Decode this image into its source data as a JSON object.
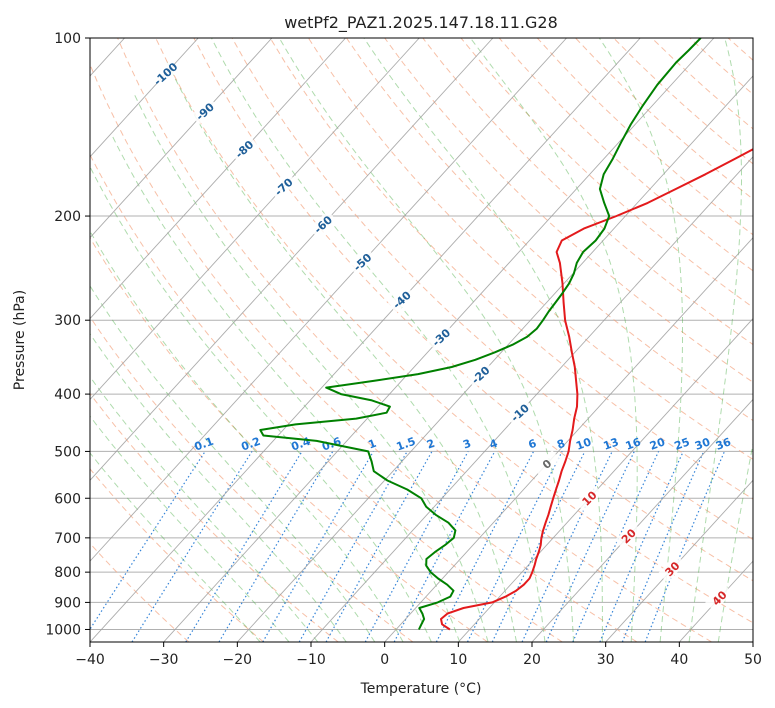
{
  "chart_data": {
    "type": "line",
    "title": "wetPf2_PAZ1.2025.147.18.11.G28",
    "xlabel": "Temperature (°C)",
    "ylabel": "Pressure (hPa)",
    "xlim": [
      -40,
      50
    ],
    "ylim": [
      1050,
      100
    ],
    "y_scale": "log",
    "grid": true,
    "x_ticks": [
      "−40",
      "−30",
      "−20",
      "−10",
      "0",
      "10",
      "20",
      "30",
      "40",
      "50"
    ],
    "x_tick_values": [
      -40,
      -30,
      -20,
      -10,
      0,
      10,
      20,
      30,
      40,
      50
    ],
    "y_ticks": [
      "100",
      "200",
      "300",
      "400",
      "500",
      "600",
      "700",
      "800",
      "900",
      "1000"
    ],
    "y_tick_values": [
      100,
      200,
      300,
      400,
      500,
      600,
      700,
      800,
      900,
      1000
    ],
    "colors": {
      "temperature": "#e31a1c",
      "dewpoint": "#008000",
      "isotherm": "#9e9e9e",
      "dry_adiabat": "#f4a582",
      "moist_adiabat": "#4daf4a",
      "mixing_ratio": "#1f77d4",
      "dry_adiabat_label": "#d62728",
      "moist_label": "#666666",
      "isotherm_label": "#1f5f99"
    },
    "isotherm_labels": [
      "-100",
      "-90",
      "-80",
      "-70",
      "-60",
      "-50",
      "-40",
      "-30",
      "-20",
      "-10"
    ],
    "isotherm_label_values": [
      -100,
      -90,
      -80,
      -70,
      -60,
      -50,
      -40,
      -30,
      -20,
      -10
    ],
    "dry_adiabat_labels": [
      "10",
      "20",
      "30",
      "40"
    ],
    "dry_adiabat_label_values": [
      10,
      20,
      30,
      40
    ],
    "moist_adiabat_label": "0",
    "mixing_ratio_labels": [
      "0.1",
      "0.2",
      "0.4",
      "0.6",
      "1",
      "1.5",
      "2",
      "3",
      "4",
      "6",
      "8",
      "10",
      "13",
      "16",
      "20",
      "25",
      "30",
      "36"
    ],
    "mixing_ratio_values": [
      0.1,
      0.2,
      0.4,
      0.6,
      1,
      1.5,
      2,
      3,
      4,
      6,
      8,
      10,
      13,
      16,
      20,
      25,
      30,
      36
    ],
    "series": [
      {
        "name": "temperature",
        "points": [
          [
            1000,
            7.3
          ],
          [
            980,
            5.6
          ],
          [
            960,
            4.8
          ],
          [
            940,
            5.0
          ],
          [
            920,
            6.5
          ],
          [
            900,
            9.7
          ],
          [
            880,
            10.8
          ],
          [
            860,
            11.5
          ],
          [
            840,
            11.8
          ],
          [
            820,
            11.8
          ],
          [
            800,
            11.4
          ],
          [
            780,
            10.9
          ],
          [
            760,
            10.3
          ],
          [
            740,
            9.8
          ],
          [
            720,
            9.2
          ],
          [
            700,
            8.4
          ],
          [
            680,
            7.7
          ],
          [
            660,
            7.1
          ],
          [
            640,
            6.5
          ],
          [
            620,
            5.8
          ],
          [
            600,
            5.1
          ],
          [
            580,
            4.4
          ],
          [
            560,
            3.7
          ],
          [
            540,
            2.9
          ],
          [
            520,
            2.2
          ],
          [
            500,
            1.4
          ],
          [
            480,
            0.3
          ],
          [
            460,
            -0.7
          ],
          [
            440,
            -1.9
          ],
          [
            420,
            -3.0
          ],
          [
            400,
            -4.5
          ],
          [
            380,
            -6.3
          ],
          [
            360,
            -8.2
          ],
          [
            340,
            -10.4
          ],
          [
            320,
            -12.7
          ],
          [
            300,
            -15.3
          ],
          [
            280,
            -17.7
          ],
          [
            260,
            -20.2
          ],
          [
            240,
            -23.1
          ],
          [
            230,
            -24.9
          ],
          [
            220,
            -25.6
          ],
          [
            210,
            -24.1
          ],
          [
            200,
            -21.2
          ],
          [
            190,
            -18.6
          ],
          [
            180,
            -16.5
          ],
          [
            170,
            -14.3
          ],
          [
            160,
            -12.2
          ],
          [
            150,
            -10.0
          ],
          [
            140,
            -7.9
          ],
          [
            130,
            -5.8
          ],
          [
            120,
            -3.9
          ],
          [
            115,
            -2.8
          ],
          [
            110,
            -1.5
          ],
          [
            105,
            -0.1
          ],
          [
            100,
            1.3
          ]
        ]
      },
      {
        "name": "dewpoint",
        "points": [
          [
            1000,
            3.1
          ],
          [
            980,
            2.8
          ],
          [
            960,
            2.5
          ],
          [
            940,
            1.6
          ],
          [
            920,
            0.5
          ],
          [
            900,
            2.3
          ],
          [
            880,
            3.3
          ],
          [
            860,
            3.0
          ],
          [
            840,
            1.4
          ],
          [
            820,
            -0.6
          ],
          [
            800,
            -2.4
          ],
          [
            780,
            -3.8
          ],
          [
            760,
            -4.6
          ],
          [
            740,
            -4.3
          ],
          [
            720,
            -3.8
          ],
          [
            700,
            -3.5
          ],
          [
            680,
            -4.2
          ],
          [
            660,
            -6.1
          ],
          [
            640,
            -8.8
          ],
          [
            620,
            -11.1
          ],
          [
            600,
            -12.8
          ],
          [
            580,
            -15.8
          ],
          [
            560,
            -19.6
          ],
          [
            540,
            -22.6
          ],
          [
            520,
            -24.1
          ],
          [
            500,
            -25.8
          ],
          [
            480,
            -34.1
          ],
          [
            470,
            -42.0
          ],
          [
            460,
            -43.1
          ],
          [
            450,
            -39.0
          ],
          [
            440,
            -31.5
          ],
          [
            430,
            -28.1
          ],
          [
            420,
            -28.4
          ],
          [
            410,
            -31.6
          ],
          [
            400,
            -36.6
          ],
          [
            390,
            -39.4
          ],
          [
            380,
            -33.8
          ],
          [
            370,
            -28.6
          ],
          [
            360,
            -24.9
          ],
          [
            350,
            -22.6
          ],
          [
            340,
            -20.9
          ],
          [
            330,
            -19.4
          ],
          [
            320,
            -18.4
          ],
          [
            310,
            -18.1
          ],
          [
            300,
            -18.3
          ],
          [
            290,
            -18.6
          ],
          [
            280,
            -18.8
          ],
          [
            270,
            -19.0
          ],
          [
            260,
            -19.3
          ],
          [
            250,
            -19.9
          ],
          [
            240,
            -20.8
          ],
          [
            230,
            -21.3
          ],
          [
            220,
            -21.0
          ],
          [
            210,
            -21.3
          ],
          [
            200,
            -22.2
          ],
          [
            190,
            -24.5
          ],
          [
            180,
            -26.8
          ],
          [
            170,
            -28.1
          ],
          [
            160,
            -28.8
          ],
          [
            150,
            -29.7
          ],
          [
            140,
            -30.6
          ],
          [
            130,
            -31.3
          ],
          [
            120,
            -31.9
          ],
          [
            110,
            -32.1
          ],
          [
            105,
            -31.9
          ],
          [
            100,
            -31.8
          ]
        ]
      }
    ]
  }
}
